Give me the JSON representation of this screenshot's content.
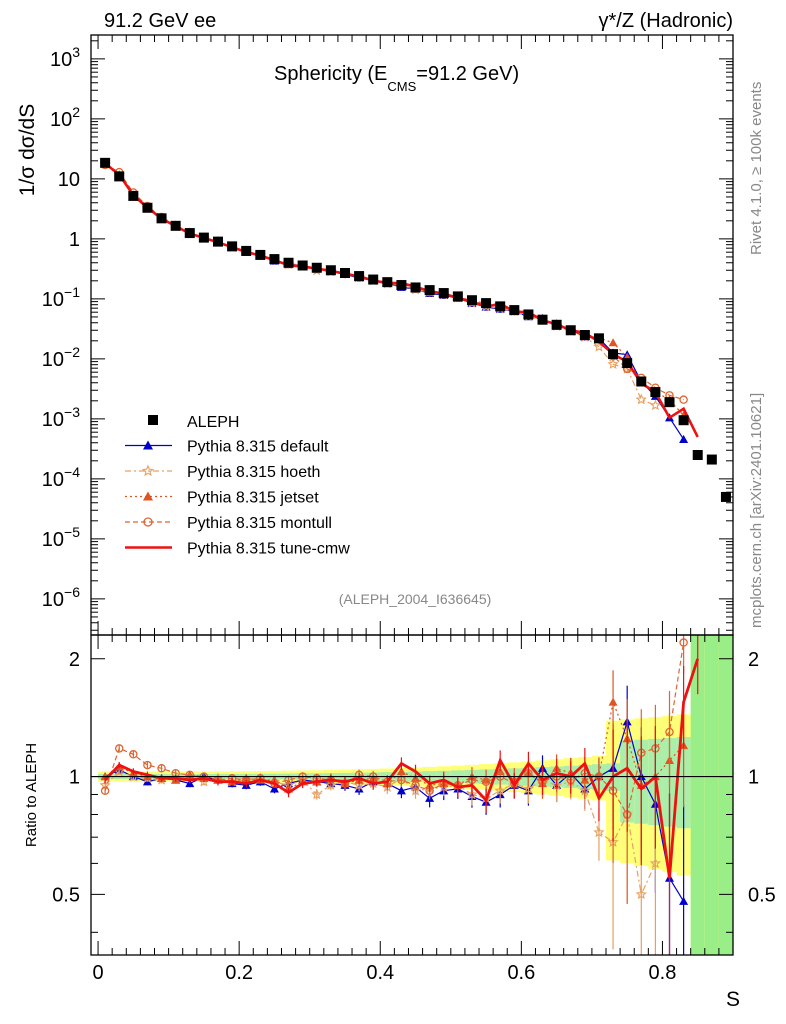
{
  "header": {
    "left": "91.2 GeV ee",
    "right": "γ*/Z (Hadronic)"
  },
  "side_labels": {
    "rivet": "Rivet 4.1.0, ≥ 100k events",
    "mcplots": "mcplots.cern.ch [arXiv:2401.10621]"
  },
  "chart_data": {
    "type": "line",
    "title": "Sphericity (E_CMS=91.2 GeV)",
    "title_main": "Sphericity (E",
    "title_sub": "CMS",
    "title_tail": "=91.2 GeV)",
    "analysis_tag": "(ALEPH_2004_I636645)",
    "xlabel": "S",
    "ylabel": "1/σ  dσ/dS",
    "ratio_ylabel": "Ratio to ALEPH",
    "xlim": [
      -0.01,
      0.9
    ],
    "ylim": [
      2.5e-07,
      2500
    ],
    "ratio_ylim": [
      0.35,
      2.3
    ],
    "y_scale": "log",
    "x_ticks": [
      "0",
      "0.2",
      "0.4",
      "0.6",
      "0.8"
    ],
    "y_ticks": [
      "10^-6",
      "10^-5",
      "10^-4",
      "10^-3",
      "10^-2",
      "10^-1",
      "1",
      "10",
      "10^2",
      "10^3"
    ],
    "ratio_ticks": [
      "0.5",
      "1",
      "2"
    ],
    "legend_position": "center-left",
    "x": [
      0.01,
      0.03,
      0.05,
      0.07,
      0.09,
      0.11,
      0.13,
      0.15,
      0.17,
      0.19,
      0.21,
      0.23,
      0.25,
      0.27,
      0.29,
      0.31,
      0.33,
      0.35,
      0.37,
      0.39,
      0.41,
      0.43,
      0.45,
      0.47,
      0.49,
      0.51,
      0.53,
      0.55,
      0.57,
      0.59,
      0.61,
      0.63,
      0.65,
      0.67,
      0.69,
      0.71,
      0.73,
      0.75,
      0.77,
      0.79,
      0.81,
      0.83,
      0.85,
      0.87,
      0.89
    ],
    "data": {
      "name": "ALEPH",
      "values": [
        18.5,
        11,
        5.2,
        3.3,
        2.2,
        1.65,
        1.25,
        1.05,
        0.9,
        0.75,
        0.63,
        0.54,
        0.46,
        0.4,
        0.36,
        0.33,
        0.3,
        0.27,
        0.24,
        0.21,
        0.19,
        0.17,
        0.155,
        0.14,
        0.125,
        0.11,
        0.095,
        0.085,
        0.075,
        0.065,
        0.055,
        0.045,
        0.037,
        0.03,
        0.025,
        0.022,
        0.012,
        0.0085,
        0.0042,
        0.0028,
        0.0019,
        0.00095,
        0.00025,
        0.00021,
        5e-05
      ]
    },
    "series": [
      {
        "name": "Pythia 8.315 default",
        "color": "#0000cc",
        "marker": "triangle",
        "dash": "",
        "ratio": [
          1.0,
          1.04,
          1.0,
          0.97,
          0.99,
          0.98,
          0.96,
          1.0,
          0.98,
          0.96,
          0.95,
          0.97,
          0.93,
          0.96,
          0.98,
          0.97,
          0.96,
          0.95,
          0.93,
          0.97,
          0.96,
          0.92,
          0.94,
          0.88,
          0.92,
          0.93,
          0.89,
          0.86,
          0.9,
          0.95,
          0.92,
          1.05,
          0.95,
          1.02,
          0.93,
          1.0,
          1.05,
          1.38,
          1.0,
          0.85,
          0.55,
          0.48
        ]
      },
      {
        "name": "Pythia 8.315 hoeth",
        "color": "#e8a060",
        "marker": "star",
        "dash": "6,3,2,3",
        "ratio": [
          0.95,
          1.03,
          1.0,
          0.99,
          0.98,
          0.99,
          1.0,
          0.97,
          0.99,
          0.97,
          0.98,
          0.99,
          0.97,
          0.95,
          0.98,
          0.9,
          0.95,
          0.97,
          0.95,
          0.96,
          0.94,
          0.99,
          0.92,
          0.93,
          0.94,
          0.95,
          0.9,
          0.88,
          0.92,
          0.96,
          0.93,
          0.98,
          0.95,
          0.97,
          0.92,
          0.72,
          0.68,
          0.8,
          0.5,
          0.6
        ]
      },
      {
        "name": "Pythia 8.315 jetset",
        "color": "#dd5522",
        "marker": "triangle",
        "dash": "2,3",
        "ratio": [
          1.0,
          1.06,
          1.02,
          1.0,
          0.99,
          0.98,
          1.01,
          0.99,
          0.98,
          0.97,
          0.99,
          0.98,
          0.98,
          0.93,
          0.97,
          0.97,
          0.99,
          0.96,
          0.98,
          0.99,
          0.96,
          1.03,
          0.99,
          0.95,
          0.96,
          0.95,
          1.0,
          0.98,
          1.03,
          0.98,
          1.02,
          0.96,
          1.05,
          1.02,
          0.98,
          1.01,
          1.55,
          1.25,
          0.95,
          1.0,
          1.1,
          1.2
        ]
      },
      {
        "name": "Pythia 8.315 montull",
        "color": "#dd6633",
        "marker": "circle",
        "dash": "5,3",
        "ratio": [
          0.92,
          1.18,
          1.14,
          1.07,
          1.05,
          1.02,
          1.01,
          1.0,
          0.98,
          0.99,
          0.98,
          0.99,
          0.96,
          0.98,
          1.0,
          0.99,
          0.98,
          0.96,
          1.01,
          1.0,
          0.97,
          0.98,
          0.95,
          0.92,
          0.96,
          0.95,
          0.98,
          0.97,
          1.0,
          0.96,
          1.02,
          0.97,
          1.0,
          0.98,
          1.02,
          1.0,
          0.92,
          0.8,
          1.15,
          1.18,
          1.3,
          2.2
        ]
      },
      {
        "name": "Pythia 8.315 tune-cmw",
        "color": "#ee1111",
        "marker": "none",
        "dash": "",
        "ratio": [
          0.98,
          1.07,
          1.03,
          1.01,
          0.99,
          0.99,
          0.98,
          0.99,
          0.97,
          0.97,
          0.96,
          0.98,
          0.96,
          0.91,
          0.96,
          0.97,
          0.98,
          0.97,
          0.99,
          0.96,
          0.97,
          1.08,
          1.03,
          0.96,
          0.98,
          0.94,
          0.95,
          0.87,
          1.1,
          0.95,
          1.08,
          0.98,
          1.02,
          1.0,
          1.08,
          0.88,
          1.0,
          1.05,
          0.93,
          1.0,
          0.55,
          1.55,
          2.0
        ]
      }
    ]
  }
}
